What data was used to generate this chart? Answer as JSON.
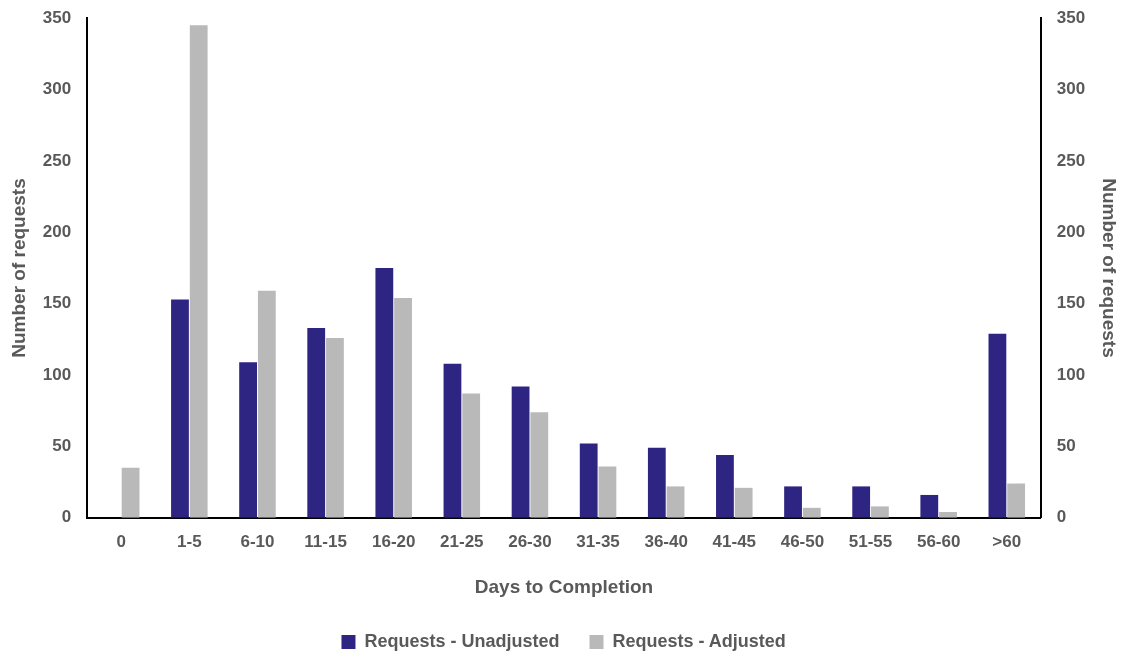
{
  "chart_data": {
    "type": "bar",
    "xlabel": "Days to Completion",
    "ylabel": "Number of requests",
    "y2label": "Number of requests",
    "categories": [
      "0",
      "1-5",
      "6-10",
      "11-15",
      "16-20",
      "21-25",
      "26-30",
      "31-35",
      "36-40",
      "41-45",
      "46-50",
      "51-55",
      "56-60",
      ">60"
    ],
    "series": [
      {
        "name": "Requests - Unadjusted",
        "color": "#2e2583",
        "values": [
          0,
          153,
          109,
          133,
          175,
          108,
          92,
          52,
          49,
          44,
          22,
          22,
          16,
          129
        ]
      },
      {
        "name": "Requests - Adjusted",
        "color": "#b9b9b9",
        "values": [
          35,
          345,
          159,
          126,
          154,
          87,
          74,
          36,
          22,
          21,
          7,
          8,
          4,
          24
        ]
      }
    ],
    "ylim": [
      0,
      350
    ],
    "yticks": [
      0,
      50,
      100,
      150,
      200,
      250,
      300,
      350
    ],
    "y2lim": [
      0,
      350
    ],
    "y2ticks": [
      0,
      50,
      100,
      150,
      200,
      250,
      300,
      350
    ],
    "grid": false,
    "legend": "bottom"
  }
}
